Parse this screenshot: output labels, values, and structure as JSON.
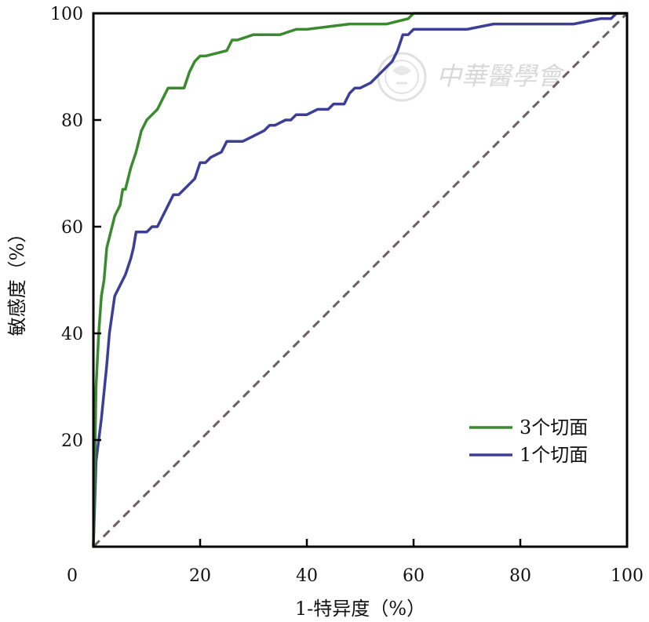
{
  "chart_data": {
    "type": "line",
    "xlabel": "1-特异度（%）",
    "ylabel": "敏感度（%）",
    "xlim": [
      0,
      100
    ],
    "ylim": [
      0,
      100
    ],
    "x_ticks": [
      "0",
      "20",
      "40",
      "60",
      "80",
      "100"
    ],
    "y_ticks": [
      "20",
      "40",
      "60",
      "80",
      "100"
    ],
    "grid": false,
    "legend_position": "bottom-right",
    "series": [
      {
        "name": "3个切面",
        "color": "#3a8a2e",
        "x": [
          0,
          0.5,
          1,
          1.5,
          2,
          2.5,
          3,
          4,
          5,
          5.5,
          6,
          7,
          8,
          9,
          10,
          11,
          12,
          13,
          14,
          17,
          18,
          19,
          20,
          21,
          25,
          26,
          27,
          30,
          35,
          38,
          40,
          48,
          55,
          59,
          60,
          65,
          100
        ],
        "y": [
          0,
          30,
          40,
          47,
          50,
          56,
          58,
          62,
          64,
          67,
          67,
          71,
          74,
          78,
          80,
          81,
          82,
          84,
          86,
          86,
          89,
          91,
          92,
          92,
          93,
          95,
          95,
          96,
          96,
          97,
          97,
          98,
          98,
          99,
          100,
          100,
          100
        ]
      },
      {
        "name": "1个切面",
        "color": "#3d3f96",
        "x": [
          0,
          0.5,
          1,
          1.5,
          2,
          2.5,
          3,
          4,
          5,
          6,
          7,
          7.5,
          8,
          10,
          11,
          12,
          13,
          14,
          15,
          16,
          17,
          18,
          19,
          20,
          21,
          22,
          24,
          25,
          28,
          30,
          32,
          33,
          34,
          36,
          37,
          38,
          40,
          42,
          44,
          45,
          47,
          48,
          49,
          50,
          52,
          54,
          56,
          57,
          58,
          59,
          60,
          65,
          68,
          70,
          75,
          80,
          85,
          90,
          95,
          97,
          98,
          100
        ],
        "y": [
          0,
          16,
          20,
          24,
          29,
          34,
          40,
          47,
          49,
          51,
          54,
          56,
          59,
          59,
          60,
          60,
          62,
          64,
          66,
          66,
          67,
          68,
          69,
          72,
          72,
          73,
          74,
          76,
          76,
          77,
          78,
          79,
          79,
          80,
          80,
          81,
          81,
          82,
          82,
          83,
          83,
          85,
          86,
          86,
          87,
          89,
          91,
          93,
          96,
          96,
          97,
          97,
          97,
          97,
          98,
          98,
          98,
          98,
          99,
          99,
          100,
          100
        ]
      },
      {
        "name": "",
        "color": "#6e5e62",
        "dash": true,
        "x": [
          0,
          100
        ],
        "y": [
          0,
          100
        ]
      }
    ]
  }
}
